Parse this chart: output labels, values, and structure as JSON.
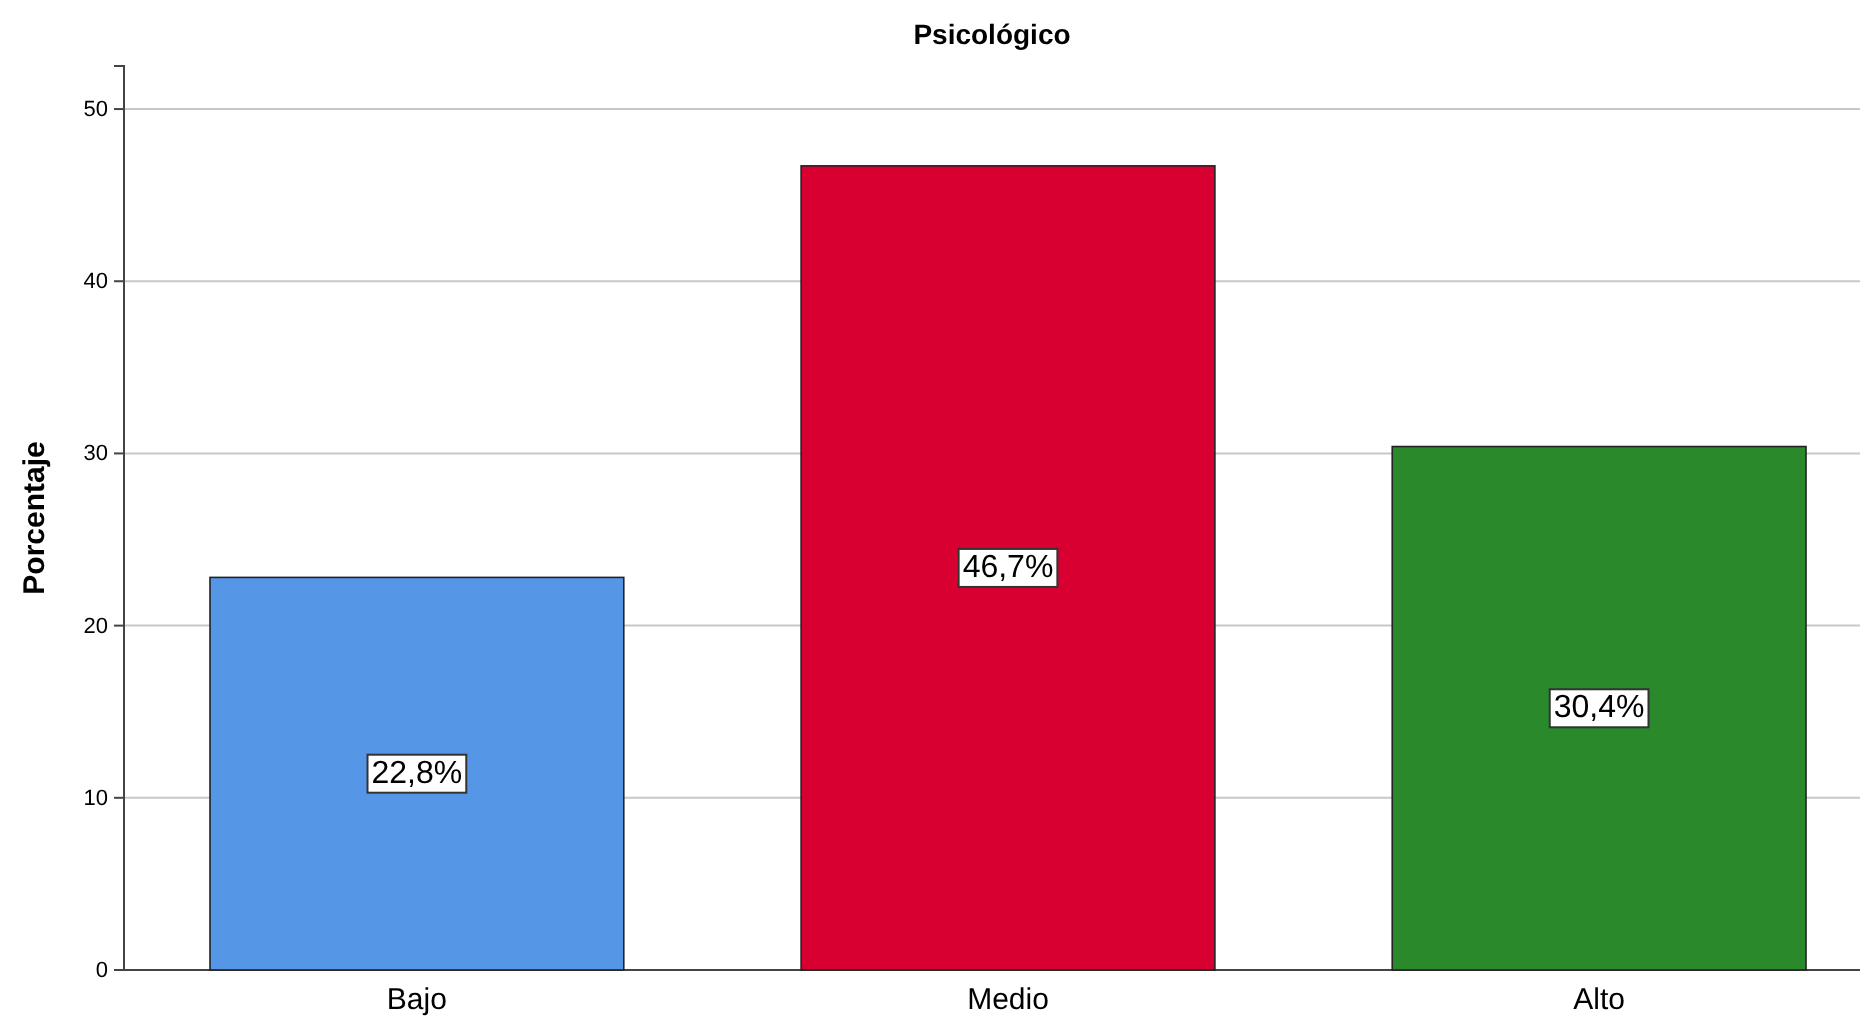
{
  "chart_data": {
    "type": "bar",
    "title": "Psicológico",
    "ylabel": "Porcentaje",
    "categories": [
      "Bajo",
      "Medio",
      "Alto"
    ],
    "values": [
      22.8,
      46.7,
      30.4
    ],
    "colors": [
      "#5596e6",
      "#d70030",
      "#2a8a2b"
    ],
    "value_labels": [
      "22,8%",
      "46,7%",
      "30,4%"
    ],
    "ylim": [
      0,
      52.5
    ],
    "yticks": [
      0,
      10,
      20,
      30,
      40,
      50
    ],
    "grid": "y"
  }
}
